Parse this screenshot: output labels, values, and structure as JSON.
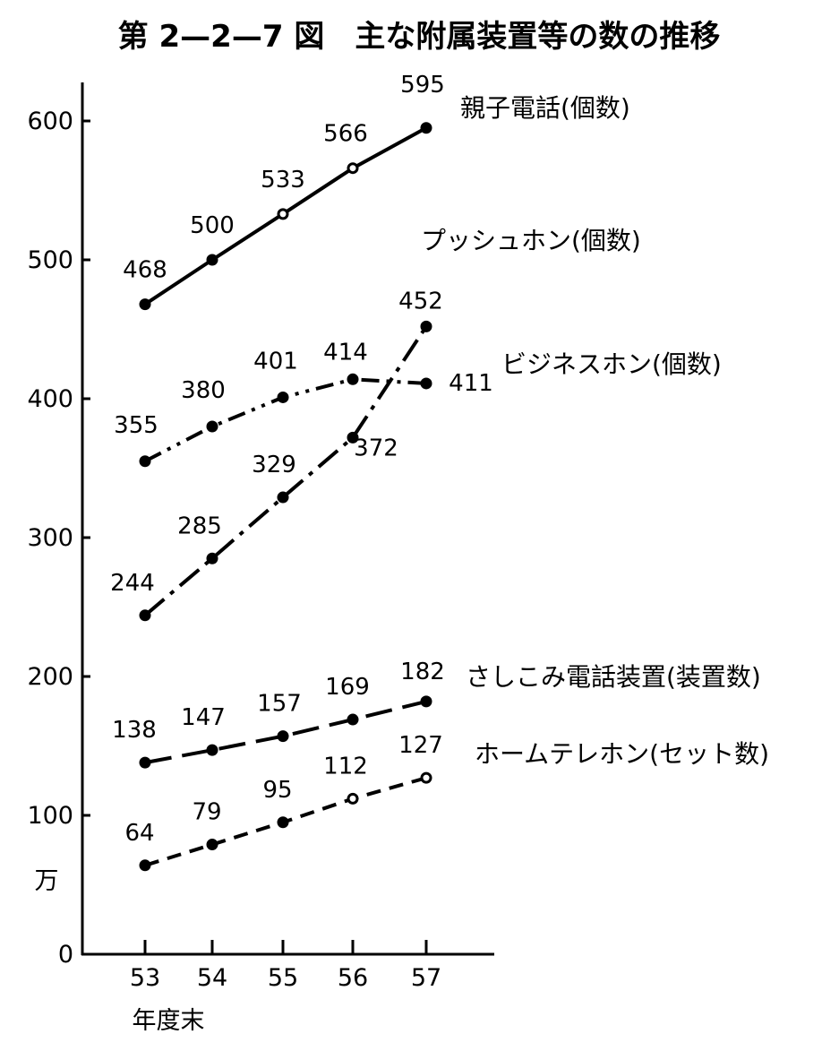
{
  "chart_data": {
    "type": "line",
    "title": "第 2—2—7 図　主な附属装置等の数の推移",
    "xlabel": "年度末",
    "ylabel": "万",
    "categories": [
      "53",
      "54",
      "55",
      "56",
      "57"
    ],
    "ylim": [
      0,
      640
    ],
    "yticks": [
      0,
      100,
      200,
      300,
      400,
      500,
      600
    ],
    "grid": false,
    "legend": "inline-right",
    "series": [
      {
        "name": "親子電話(個数)",
        "values": [
          468,
          500,
          533,
          566,
          595
        ],
        "style": "solid"
      },
      {
        "name": "プッシュホン(個数)",
        "values": [
          244,
          285,
          329,
          372,
          452
        ],
        "style": "dash-dot"
      },
      {
        "name": "ビジネスホン(個数)",
        "values": [
          355,
          380,
          401,
          414,
          411
        ],
        "style": "dash-dot-dot"
      },
      {
        "name": "さしこみ電話装置(装置数)",
        "values": [
          138,
          147,
          157,
          169,
          182
        ],
        "style": "long-dash"
      },
      {
        "name": "ホームテレホン(セット数)",
        "values": [
          64,
          79,
          95,
          112,
          127
        ],
        "style": "dash"
      }
    ]
  }
}
